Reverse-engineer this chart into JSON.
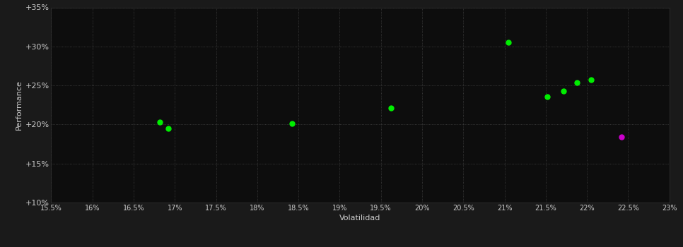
{
  "green_points": [
    [
      16.82,
      20.3
    ],
    [
      16.92,
      19.5
    ],
    [
      18.42,
      20.15
    ],
    [
      19.62,
      22.1
    ],
    [
      21.05,
      30.5
    ],
    [
      21.52,
      23.55
    ],
    [
      21.72,
      24.3
    ],
    [
      21.88,
      25.35
    ],
    [
      22.05,
      25.7
    ]
  ],
  "magenta_points": [
    [
      22.42,
      18.4
    ]
  ],
  "green_color": "#00ee00",
  "magenta_color": "#cc00cc",
  "background_color": "#1a1a1a",
  "plot_bg_color": "#0d0d0d",
  "grid_color": "#444444",
  "text_color": "#cccccc",
  "xlabel": "Volatilidad",
  "ylabel": "Performance",
  "xlim": [
    15.5,
    23.0
  ],
  "ylim": [
    10.0,
    35.0
  ],
  "xticks": [
    15.5,
    16.0,
    16.5,
    17.0,
    17.5,
    18.0,
    18.5,
    19.0,
    19.5,
    20.0,
    20.5,
    21.0,
    21.5,
    22.0,
    22.5,
    23.0
  ],
  "yticks": [
    10,
    15,
    20,
    25,
    30,
    35
  ],
  "xtick_labels": [
    "15.5%",
    "16%",
    "16.5%",
    "17%",
    "17.5%",
    "18%",
    "18.5%",
    "19%",
    "19.5%",
    "20%",
    "20.5%",
    "21%",
    "21.5%",
    "22%",
    "22.5%",
    "23%"
  ],
  "ytick_labels": [
    "+10%",
    "+15%",
    "+20%",
    "+25%",
    "+30%",
    "+35%"
  ],
  "marker_size": 5,
  "figsize": [
    9.66,
    3.5
  ],
  "dpi": 100
}
